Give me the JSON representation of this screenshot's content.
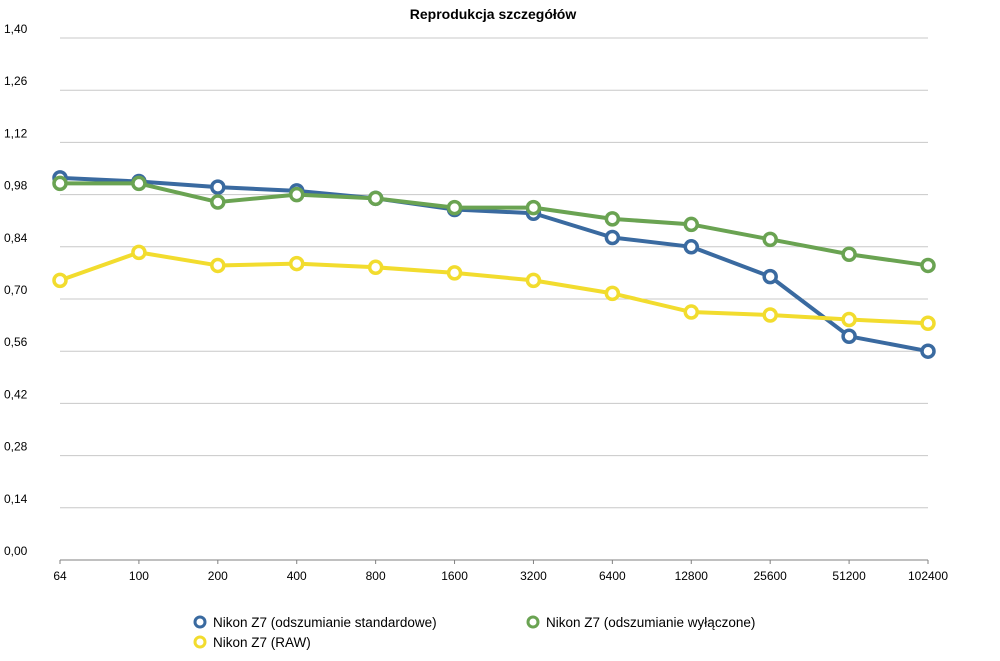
{
  "chart_data": {
    "type": "line",
    "title": "Reprodukcja szczegółów",
    "xlabel": "",
    "ylabel": "",
    "categories": [
      "64",
      "100",
      "200",
      "400",
      "800",
      "1600",
      "3200",
      "6400",
      "12800",
      "25600",
      "51200",
      "102400"
    ],
    "ylim": [
      0,
      1.4
    ],
    "yticks": [
      "0,00",
      "0,14",
      "0,28",
      "0,42",
      "0,56",
      "0,70",
      "0,84",
      "0,98",
      "1,12",
      "1,26",
      "1,40"
    ],
    "grid": true,
    "legend_position": "bottom",
    "series": [
      {
        "name": "Nikon Z7 (odszumianie standardowe)",
        "color": "#3a6aa0",
        "values": [
          1.025,
          1.015,
          1.0,
          0.99,
          0.97,
          0.94,
          0.93,
          0.865,
          0.84,
          0.76,
          0.6,
          0.56
        ]
      },
      {
        "name": "Nikon Z7 (odszumianie wyłączone)",
        "color": "#6aa352",
        "values": [
          1.01,
          1.01,
          0.96,
          0.98,
          0.97,
          0.945,
          0.945,
          0.915,
          0.9,
          0.86,
          0.82,
          0.79
        ]
      },
      {
        "name": "Nikon Z7 (RAW)",
        "color": "#f2dc2e",
        "values": [
          0.75,
          0.825,
          0.79,
          0.795,
          0.785,
          0.77,
          0.75,
          0.715,
          0.665,
          0.657,
          0.645,
          0.635
        ]
      }
    ],
    "legend_order": [
      0,
      1,
      2
    ]
  }
}
